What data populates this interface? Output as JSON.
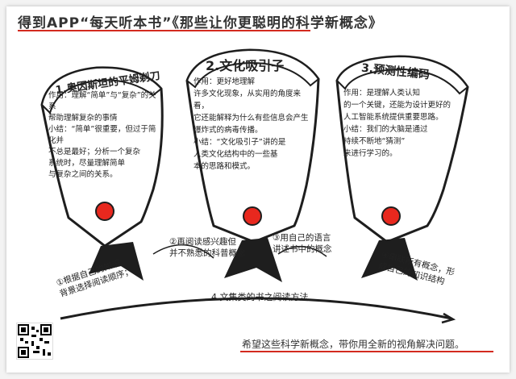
{
  "header": {
    "title": "得到APP“每天听本书”《那些让你更聪明的科学新概念》"
  },
  "fans": [
    {
      "number": "1.",
      "heading": "奥因斯坦的平姆剃刀",
      "body": "作用：理解“简单”与“复杂”的关系\n帮助理解复杂的事情\n小结：“简单”很重要，但过于简化并\n不总是最好；分析一个复杂\n系统时，尽量理解简单\n与复杂之间的关系。"
    },
    {
      "number": "2.",
      "heading": "文化吸引子",
      "body": "作用：更好地理解\n许多文化现象，从实用的角度来看，\n它还能解释为什么有些信息会产生\n爆炸式的病毒传播。\n小结：“文化吸引子”讲的是\n人类文化结构中的一些基\n本的思路和模式。"
    },
    {
      "number": "3.",
      "heading": "预测性编码",
      "body": "作用：是理解人类认知\n的一个关键，还能为设计更好的\n人工智能系统提供重要思路。\n小结：我们的大脑是通过\n持续不断地“猜测”\n来进行学习的。"
    }
  ],
  "steps": [
    {
      "label": "①根据自己的知识\n背景选择阅读顺序；"
    },
    {
      "label": "②再阅读感兴趣但\n并不熟悉的科普概念"
    },
    {
      "label": "③用自己的语言\n讲述书中的概念"
    },
    {
      "label": "④串联所有概念，形\n成自己的知识结构"
    }
  ],
  "arc_label": "4.文集类的书之阅读方法",
  "footer": {
    "text": "希望这些科学新概念，带你用全新的视角解决问题。"
  },
  "colors": {
    "accent_red": "#e8281e",
    "fan_fill": "#ffffff",
    "ink": "#1e1e1e",
    "banner_red": "#d32a1f"
  },
  "icons": {
    "qr": "qr-code-icon"
  }
}
